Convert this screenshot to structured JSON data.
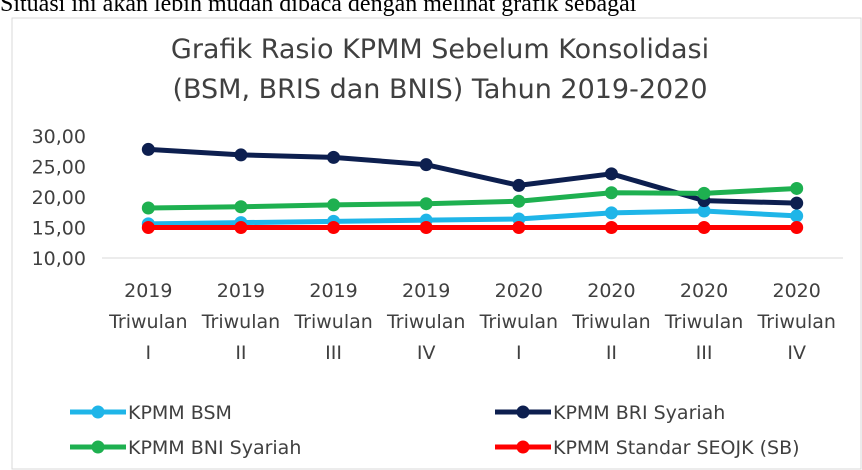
{
  "header_text": "Situasi ini akan lebih mudah dibaca dengan melihat grafik sebagai",
  "chart_data": {
    "type": "line",
    "title": [
      "Grafik Rasio KPMM Sebelum Konsolidasi",
      "(BSM, BRIS dan BNIS) Tahun 2019-2020"
    ],
    "categories": [
      [
        "2019",
        "Triwulan",
        "I"
      ],
      [
        "2019",
        "Triwulan",
        "II"
      ],
      [
        "2019",
        "Triwulan",
        "III"
      ],
      [
        "2019",
        "Triwulan",
        "IV"
      ],
      [
        "2020",
        "Triwulan",
        "I"
      ],
      [
        "2020",
        "Triwulan",
        "II"
      ],
      [
        "2020",
        "Triwulan",
        "III"
      ],
      [
        "2020",
        "Triwulan",
        "IV"
      ]
    ],
    "series": [
      {
        "name": "KPMM BSM",
        "color": "#1fb5e8",
        "values": [
          15.6,
          15.8,
          16.0,
          16.2,
          16.4,
          17.4,
          17.7,
          16.9
        ]
      },
      {
        "name": "KPMM BRI Syariah",
        "color": "#0d1f4f",
        "values": [
          27.8,
          26.9,
          26.5,
          25.3,
          21.9,
          23.8,
          19.4,
          19.0
        ]
      },
      {
        "name": "KPMM BNI Syariah",
        "color": "#1eb050",
        "values": [
          18.2,
          18.4,
          18.7,
          18.9,
          19.3,
          20.7,
          20.6,
          21.4
        ]
      },
      {
        "name": "KPMM Standar SEOJK (SB)",
        "color": "#ff0000",
        "values": [
          15,
          15,
          15,
          15,
          15,
          15,
          15,
          15
        ]
      }
    ],
    "ylim": [
      10,
      30
    ],
    "yticks": [
      {
        "value": 10,
        "label": "10,00"
      },
      {
        "value": 15,
        "label": "15,00"
      },
      {
        "value": 20,
        "label": "20,00"
      },
      {
        "value": 25,
        "label": "25,00"
      },
      {
        "value": 30,
        "label": "30,00"
      }
    ],
    "grid": false,
    "legend": "bottom"
  }
}
